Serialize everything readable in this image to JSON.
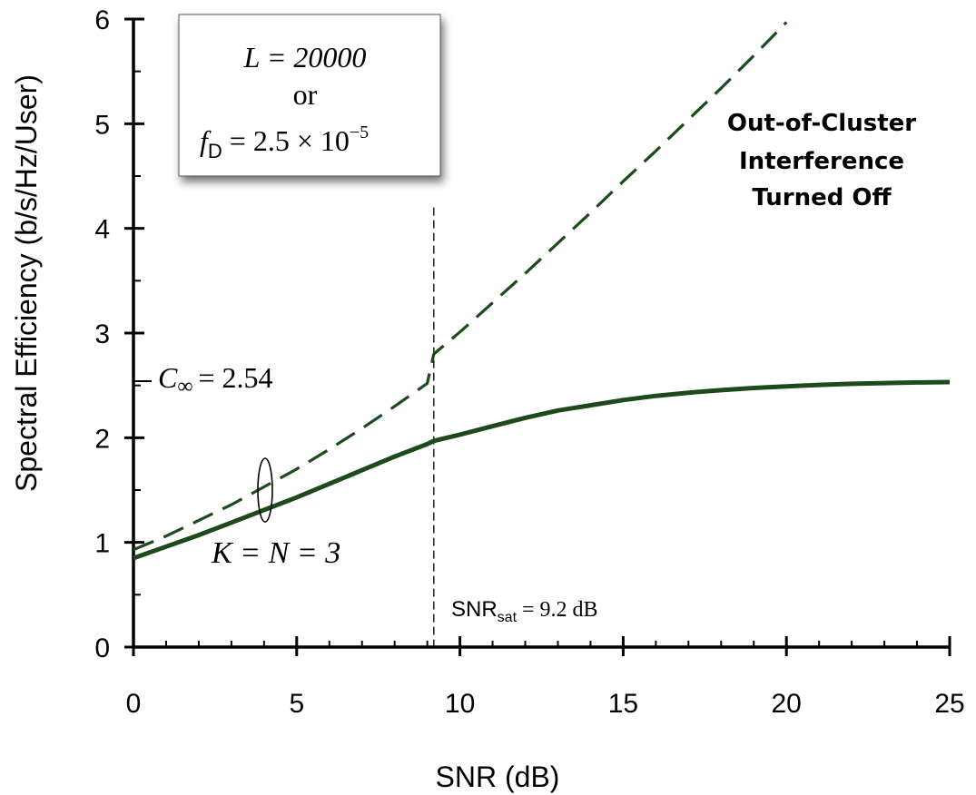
{
  "chart_data": {
    "type": "line",
    "xlabel": "SNR (dB)",
    "ylabel": "Spectral Efficiency (b/s/Hz/User)",
    "xlim": [
      0,
      25
    ],
    "ylim": [
      0,
      6
    ],
    "x_ticks": [
      "0",
      "5",
      "10",
      "15",
      "20",
      "25"
    ],
    "y_ticks": [
      "0",
      "1",
      "2",
      "3",
      "4",
      "5",
      "6"
    ],
    "grid": false,
    "series": [
      {
        "style": "dashed",
        "color": "#1d4a1d",
        "x": [
          0,
          1,
          2,
          3,
          4,
          5,
          6,
          7,
          8,
          9,
          9.2,
          10,
          11,
          12,
          13,
          14,
          15,
          16,
          17,
          18,
          19,
          20
        ],
        "y": [
          0.93,
          1.06,
          1.21,
          1.36,
          1.53,
          1.7,
          1.89,
          2.09,
          2.3,
          2.52,
          2.8,
          3.01,
          3.29,
          3.57,
          3.86,
          4.15,
          4.45,
          4.74,
          5.04,
          5.34,
          5.65,
          5.97
        ]
      },
      {
        "style": "solid",
        "color": "#1d4a1d",
        "x": [
          0,
          1,
          2,
          3,
          4,
          5,
          6,
          7,
          8,
          9,
          9.2,
          10,
          11,
          12,
          13,
          14,
          15,
          16,
          17,
          18,
          19,
          20,
          21,
          22,
          23,
          24,
          25
        ],
        "y": [
          0.85,
          0.96,
          1.07,
          1.19,
          1.31,
          1.43,
          1.56,
          1.69,
          1.82,
          1.94,
          1.97,
          2.03,
          2.11,
          2.19,
          2.26,
          2.31,
          2.36,
          2.4,
          2.43,
          2.455,
          2.475,
          2.49,
          2.505,
          2.515,
          2.522,
          2.528,
          2.532
        ]
      }
    ],
    "annotations": {
      "box_line1": "L = 20000",
      "box_line2": "or",
      "box_line3_lhs": "f",
      "box_line3_sub": "D",
      "box_line3_rhs": "= 2.5 × 10",
      "box_line3_exp": "−5",
      "c_inf_symbol": "C",
      "c_inf_sub": "∞",
      "c_inf_value": "= 2.54",
      "knn_label": "K = N = 3",
      "snr_sat_prefix": "SNR",
      "snr_sat_sub": "sat",
      "snr_sat_value": " = 9.2 dB",
      "snr_sat_x": 9.2,
      "c_inf_y": 2.54,
      "hand_line1": "Out-of-Cluster",
      "hand_line2": "Interference",
      "hand_line3": "Turned Off"
    }
  }
}
